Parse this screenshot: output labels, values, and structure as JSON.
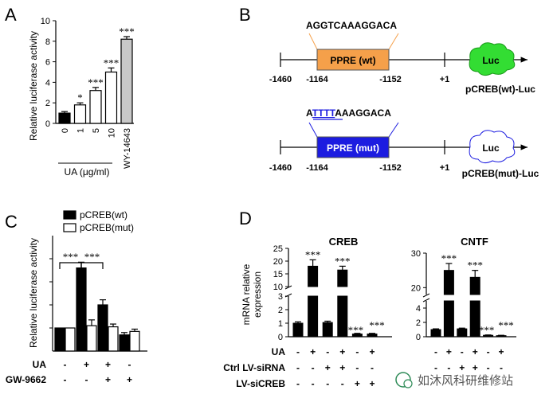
{
  "colors": {
    "orange_box": "#f5a04a",
    "blue_box": "#1c1ce0",
    "luc_green": "#33dd33",
    "grey_bar": "#c8c8c8",
    "mutation_blue": "#1c1ce0",
    "watermark_green": "#2e8b57"
  },
  "panels": {
    "A": {
      "letter": "A"
    },
    "B": {
      "letter": "B",
      "wt": {
        "sequence": "AGGTCAAAGGACA",
        "box_label": "PPRE (wt)",
        "luc_label": "Luc",
        "construct": "pCREB(wt)-Luc",
        "pos_start": "-1460",
        "pos_box_start": "-1164",
        "pos_box_end": "-1152",
        "pos_tss": "+1"
      },
      "mut": {
        "seq_part1": "A",
        "seq_mutated": "TTTT",
        "seq_part2": "AAAGGACA",
        "box_label": "PPRE (mut)",
        "luc_label": "Luc",
        "construct": "pCREB(mut)-Luc",
        "pos_start": "-1460",
        "pos_box_start": "-1164",
        "pos_box_end": "-1152",
        "pos_tss": "+1"
      }
    },
    "C": {
      "letter": "C"
    },
    "D": {
      "letter": "D"
    }
  },
  "watermark": {
    "text": "如沐风科研维修站"
  },
  "chart_data": [
    {
      "panel": "A",
      "type": "bar",
      "ylabel": "Relative luciferase activity",
      "xlabel": "UA (μg/ml)",
      "categories": [
        "0",
        "1",
        "5",
        "10",
        "WY-14643"
      ],
      "values": [
        1.0,
        1.8,
        3.2,
        5.0,
        8.2
      ],
      "errors": [
        0.15,
        0.2,
        0.3,
        0.4,
        0.25
      ],
      "significance": [
        "",
        "*",
        "***",
        "***",
        "***"
      ],
      "bar_styles": [
        "black",
        "white",
        "white",
        "white",
        "grey"
      ],
      "yticks": [
        "0",
        "2",
        "4",
        "6",
        "8",
        "10"
      ],
      "ylim": [
        0,
        10
      ]
    },
    {
      "panel": "C",
      "type": "bar",
      "ylabel": "Relative luciferase activity",
      "legend": [
        {
          "name": "pCREB(wt)",
          "style": "black"
        },
        {
          "name": "pCREB(mut)",
          "style": "white"
        }
      ],
      "groups": [
        {
          "wt": 1.0,
          "mut": 1.0,
          "wt_err": 0.0,
          "mut_err": 0.0
        },
        {
          "wt": 3.6,
          "mut": 1.1,
          "wt_err": 0.25,
          "mut_err": 0.25
        },
        {
          "wt": 2.0,
          "mut": 1.05,
          "wt_err": 0.22,
          "mut_err": 0.12
        },
        {
          "wt": 0.7,
          "mut": 0.85,
          "wt_err": 0.1,
          "mut_err": 0.1
        }
      ],
      "ylim": [
        0,
        5
      ],
      "brackets": [
        "***",
        "***"
      ],
      "treatments": [
        {
          "name": "UA",
          "signs": [
            "-",
            "+",
            "+",
            "-"
          ]
        },
        {
          "name": "GW-9662",
          "signs": [
            "-",
            "-",
            "+",
            "+"
          ]
        }
      ]
    },
    {
      "panel": "D",
      "type": "bar",
      "ylabel_line1": "mRNA relative",
      "ylabel_line2": "expression",
      "subcharts": [
        {
          "title": "CREB",
          "values": [
            1.0,
            18.0,
            1.05,
            16.5,
            0.2,
            0.2
          ],
          "errors": [
            0.1,
            2.5,
            0.1,
            1.5,
            0.05,
            0.05
          ],
          "significance": [
            "",
            "***",
            "",
            "***",
            "***",
            "***"
          ],
          "upper_ticks": [
            "10",
            "15",
            "20",
            "25"
          ],
          "lower_ticks": [
            "0",
            "1",
            "2",
            "3"
          ],
          "upper_range": [
            10,
            25
          ],
          "lower_range": [
            0,
            3
          ]
        },
        {
          "title": "CNTF",
          "values": [
            1.0,
            25.0,
            1.1,
            23.0,
            0.2,
            0.15
          ],
          "errors": [
            0.1,
            2.0,
            0.1,
            2.0,
            0.05,
            0.05
          ],
          "significance": [
            "",
            "***",
            "",
            "***",
            "***",
            "***"
          ],
          "upper_ticks": [
            "20",
            "30"
          ],
          "lower_ticks": [
            "0",
            "2",
            "4"
          ],
          "upper_range": [
            18,
            30
          ],
          "lower_range": [
            0,
            5
          ]
        }
      ],
      "treatments": [
        {
          "name": "UA",
          "signs": [
            "-",
            "+",
            "-",
            "+",
            "-",
            "+"
          ]
        },
        {
          "name": "Ctrl LV-siRNA",
          "signs": [
            "-",
            "-",
            "+",
            "+",
            "-",
            "-"
          ]
        },
        {
          "name": "LV-siCREB",
          "signs": [
            "-",
            "-",
            "-",
            "-",
            "+",
            "+"
          ]
        }
      ]
    }
  ]
}
